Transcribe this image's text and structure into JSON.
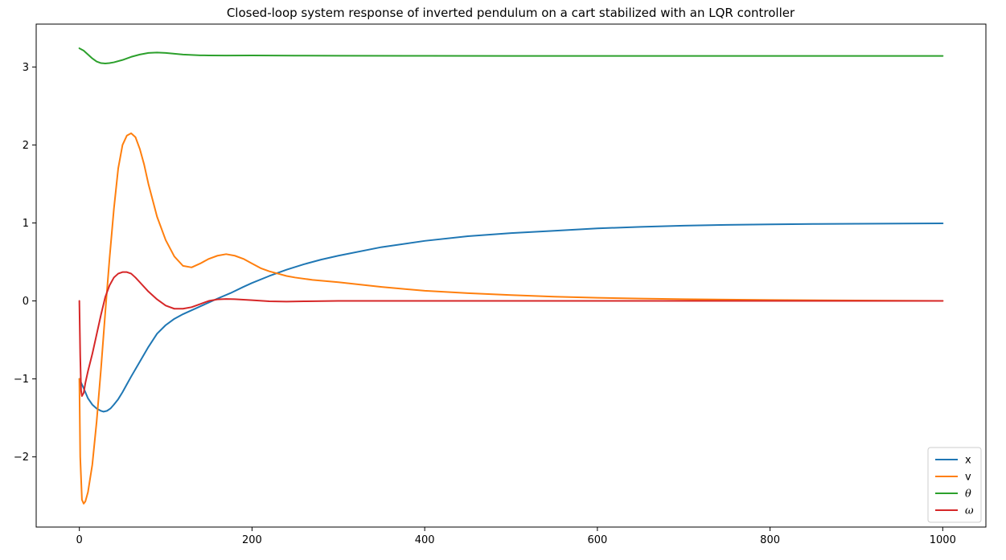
{
  "chart_data": {
    "type": "line",
    "title": "Closed-loop system response of inverted pendulum on a cart stabilized with an LQR controller",
    "xlabel": "",
    "ylabel": "",
    "xlim": [
      -50,
      1050
    ],
    "ylim": [
      -2.9,
      3.55
    ],
    "grid": false,
    "legend_position": "lower-right",
    "x_ticks": [
      0,
      200,
      400,
      600,
      800,
      1000
    ],
    "x_tick_labels": [
      "0",
      "200",
      "400",
      "600",
      "800",
      "1000"
    ],
    "y_ticks": [
      -2,
      -1,
      0,
      1,
      2,
      3
    ],
    "y_tick_labels": [
      "−2",
      "−1",
      "0",
      "1",
      "2",
      "3"
    ],
    "series": [
      {
        "name": "x",
        "color": "#1f77b4",
        "x": [
          0,
          5,
          10,
          15,
          20,
          25,
          28,
          32,
          36,
          40,
          45,
          50,
          55,
          60,
          70,
          80,
          90,
          100,
          110,
          120,
          130,
          140,
          150,
          160,
          175,
          190,
          200,
          220,
          240,
          260,
          280,
          300,
          350,
          400,
          450,
          500,
          550,
          600,
          650,
          700,
          750,
          800,
          850,
          900,
          950,
          1000
        ],
        "values": [
          -1.0,
          -1.12,
          -1.25,
          -1.33,
          -1.38,
          -1.41,
          -1.42,
          -1.41,
          -1.38,
          -1.33,
          -1.26,
          -1.17,
          -1.07,
          -0.97,
          -0.78,
          -0.59,
          -0.42,
          -0.31,
          -0.23,
          -0.17,
          -0.12,
          -0.07,
          -0.02,
          0.03,
          0.1,
          0.18,
          0.23,
          0.32,
          0.4,
          0.47,
          0.53,
          0.58,
          0.69,
          0.77,
          0.83,
          0.87,
          0.9,
          0.93,
          0.95,
          0.965,
          0.975,
          0.982,
          0.987,
          0.99,
          0.992,
          0.995
        ]
      },
      {
        "name": "v",
        "color": "#ff7f0e",
        "x": [
          0,
          1,
          3,
          5,
          7,
          10,
          15,
          20,
          25,
          30,
          35,
          40,
          45,
          50,
          55,
          60,
          65,
          70,
          75,
          80,
          90,
          100,
          110,
          120,
          130,
          140,
          150,
          160,
          170,
          180,
          190,
          200,
          210,
          220,
          230,
          240,
          250,
          270,
          300,
          350,
          400,
          450,
          500,
          550,
          600,
          650,
          700,
          800,
          900,
          1000
        ],
        "values": [
          -1.0,
          -2.0,
          -2.55,
          -2.6,
          -2.57,
          -2.45,
          -2.1,
          -1.55,
          -0.88,
          -0.15,
          0.55,
          1.18,
          1.7,
          2.0,
          2.12,
          2.15,
          2.1,
          1.95,
          1.75,
          1.5,
          1.08,
          0.78,
          0.57,
          0.45,
          0.43,
          0.48,
          0.54,
          0.58,
          0.6,
          0.58,
          0.54,
          0.48,
          0.42,
          0.38,
          0.35,
          0.32,
          0.3,
          0.27,
          0.24,
          0.18,
          0.13,
          0.1,
          0.075,
          0.055,
          0.04,
          0.03,
          0.022,
          0.012,
          0.006,
          0.0
        ]
      },
      {
        "name": "θ",
        "color": "#2ca02c",
        "x": [
          0,
          5,
          10,
          15,
          20,
          25,
          30,
          35,
          40,
          50,
          60,
          70,
          80,
          90,
          100,
          110,
          120,
          130,
          140,
          150,
          170,
          200,
          250,
          300,
          400,
          500,
          600,
          700,
          800,
          900,
          1000
        ],
        "values": [
          3.24,
          3.21,
          3.16,
          3.11,
          3.07,
          3.05,
          3.045,
          3.05,
          3.06,
          3.09,
          3.13,
          3.16,
          3.18,
          3.185,
          3.18,
          3.17,
          3.16,
          3.155,
          3.15,
          3.148,
          3.147,
          3.148,
          3.146,
          3.144,
          3.143,
          3.142,
          3.142,
          3.142,
          3.142,
          3.142,
          3.142
        ]
      },
      {
        "name": "ω",
        "color": "#d62728",
        "x": [
          0,
          1,
          2,
          3,
          5,
          7,
          10,
          15,
          20,
          25,
          30,
          35,
          40,
          45,
          50,
          55,
          60,
          65,
          70,
          80,
          90,
          100,
          110,
          120,
          130,
          140,
          150,
          160,
          170,
          180,
          200,
          220,
          240,
          260,
          300,
          400,
          500,
          600,
          700,
          800,
          900,
          1000
        ],
        "values": [
          0.0,
          -0.7,
          -1.15,
          -1.22,
          -1.18,
          -1.05,
          -0.9,
          -0.68,
          -0.43,
          -0.18,
          0.05,
          0.2,
          0.3,
          0.35,
          0.37,
          0.37,
          0.35,
          0.3,
          0.24,
          0.12,
          0.02,
          -0.06,
          -0.1,
          -0.1,
          -0.08,
          -0.04,
          0.0,
          0.02,
          0.025,
          0.022,
          0.01,
          -0.005,
          -0.008,
          -0.005,
          0.0,
          0.0,
          0.0,
          0.0,
          0.0,
          0.0,
          0.0,
          0.0
        ]
      }
    ]
  }
}
